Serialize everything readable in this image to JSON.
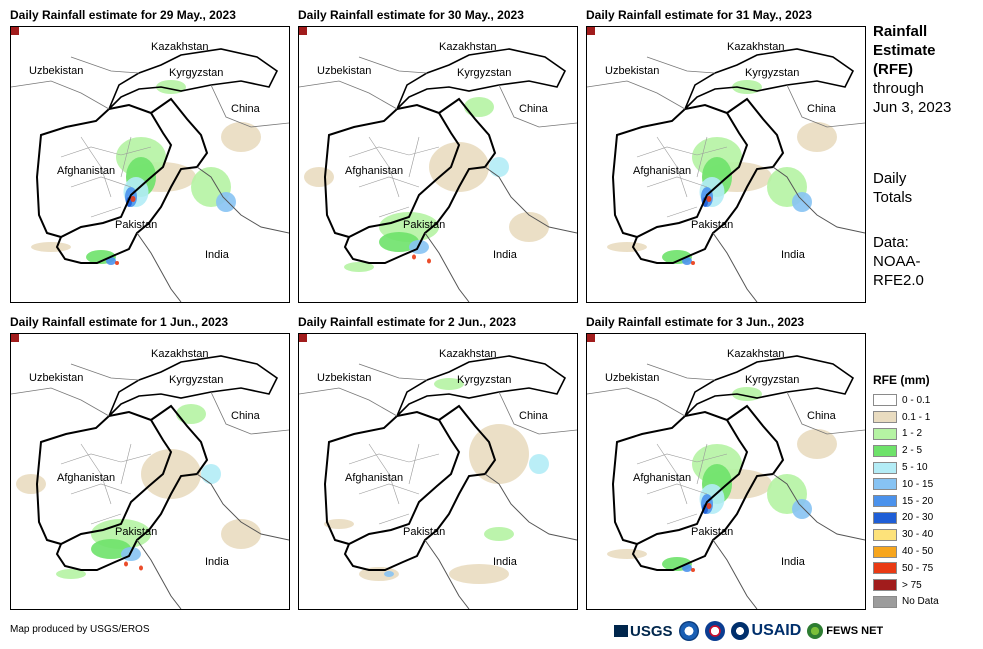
{
  "panels": [
    {
      "title": "Daily Rainfall estimate for 29 May., 2023",
      "rain_level": "high"
    },
    {
      "title": "Daily Rainfall estimate for 30 May., 2023",
      "rain_level": "medium"
    },
    {
      "title": "Daily Rainfall estimate for 31 May., 2023",
      "rain_level": "high"
    },
    {
      "title": "Daily Rainfall estimate for 1 Jun., 2023",
      "rain_level": "medium"
    },
    {
      "title": "Daily Rainfall estimate for 2 Jun., 2023",
      "rain_level": "low"
    },
    {
      "title": "Daily Rainfall estimate for 3 Jun., 2023",
      "rain_level": "high"
    }
  ],
  "map_labels": {
    "kazakhstan": "Kazakhstan",
    "uzbekistan": "Uzbekistan",
    "kyrgyzstan": "Kyrgyzstan",
    "china": "China",
    "afghanistan": "Afghanistan",
    "pakistan": "Pakistan",
    "india": "India"
  },
  "side": {
    "title_line1": "Rainfall",
    "title_line2": "Estimate",
    "title_line3": "(RFE)",
    "through": "through",
    "date": "Jun 3, 2023",
    "daily1": "Daily",
    "daily2": "Totals",
    "data1": "Data:",
    "data2": "NOAA-",
    "data3": "RFE2.0"
  },
  "legend": {
    "title": "RFE (mm)",
    "items": [
      {
        "label": "0 - 0.1",
        "color": "#ffffff"
      },
      {
        "label": "0.1 - 1",
        "color": "#e9dcc0"
      },
      {
        "label": "1 - 2",
        "color": "#b5f3a3"
      },
      {
        "label": "2 - 5",
        "color": "#6ee26a"
      },
      {
        "label": "5 - 10",
        "color": "#b3ecf6"
      },
      {
        "label": "10 - 15",
        "color": "#87c3f3"
      },
      {
        "label": "15 - 20",
        "color": "#4b92ec"
      },
      {
        "label": "20 - 30",
        "color": "#1f5ed6"
      },
      {
        "label": "30 - 40",
        "color": "#fde27a"
      },
      {
        "label": "40 - 50",
        "color": "#f7a51c"
      },
      {
        "label": "50 - 75",
        "color": "#e93a14"
      },
      {
        "label": "> 75",
        "color": "#a11c1c"
      },
      {
        "label": "No Data",
        "color": "#9c9c9c"
      }
    ]
  },
  "credit": "Map produced by USGS/EROS",
  "logos": {
    "usgs": "USGS",
    "usaid": "USAID",
    "fews": "FEWS NET"
  }
}
